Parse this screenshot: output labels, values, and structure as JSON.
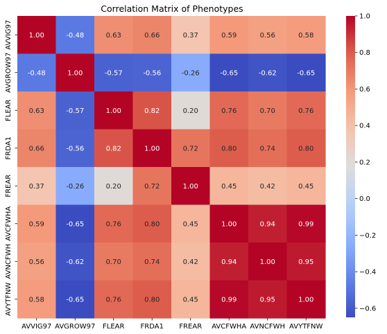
{
  "chart_data": {
    "type": "heatmap",
    "title": "Correlation Matrix of Phenotypes",
    "xlabel": "",
    "ylabel": "",
    "x_categories": [
      "AVVIG97",
      "AVGROW97",
      "FLEAR",
      "FRDA1",
      "FREAR",
      "AVCFWHA",
      "AVNCFWH",
      "AVYTFNW"
    ],
    "y_categories": [
      "AVVIG97",
      "AVGROW97",
      "FLEAR",
      "FRDA1",
      "FREAR",
      "AVCFWHA",
      "AVNCFWH",
      "AVYTFNW"
    ],
    "values": [
      [
        1.0,
        -0.48,
        0.63,
        0.66,
        0.37,
        0.59,
        0.56,
        0.58
      ],
      [
        -0.48,
        1.0,
        -0.57,
        -0.56,
        -0.26,
        -0.65,
        -0.62,
        -0.65
      ],
      [
        0.63,
        -0.57,
        1.0,
        0.82,
        0.2,
        0.76,
        0.7,
        0.76
      ],
      [
        0.66,
        -0.56,
        0.82,
        1.0,
        0.72,
        0.8,
        0.74,
        0.8
      ],
      [
        0.37,
        -0.26,
        0.2,
        0.72,
        1.0,
        0.45,
        0.42,
        0.45
      ],
      [
        0.59,
        -0.65,
        0.76,
        0.8,
        0.45,
        1.0,
        0.94,
        0.99
      ],
      [
        0.56,
        -0.62,
        0.7,
        0.74,
        0.42,
        0.94,
        1.0,
        0.95
      ],
      [
        0.58,
        -0.65,
        0.76,
        0.8,
        0.45,
        0.99,
        0.95,
        1.0
      ]
    ],
    "annotation_format": "2 decimals",
    "colormap": "coolwarm",
    "colorbar": {
      "range": [
        -0.65,
        1.0
      ],
      "ticks": [
        -0.6,
        -0.4,
        -0.2,
        0.0,
        0.2,
        0.4,
        0.6,
        0.8,
        1.0
      ],
      "tick_labels": [
        "−0.6",
        "−0.4",
        "−0.2",
        "0.0",
        "0.2",
        "0.4",
        "0.6",
        "0.8",
        "1.0"
      ]
    },
    "colors": {
      "low": "#3b4cc0",
      "mid": "#dddddd",
      "high": "#b40426"
    },
    "grid": false,
    "legend": "colorbar-right"
  }
}
